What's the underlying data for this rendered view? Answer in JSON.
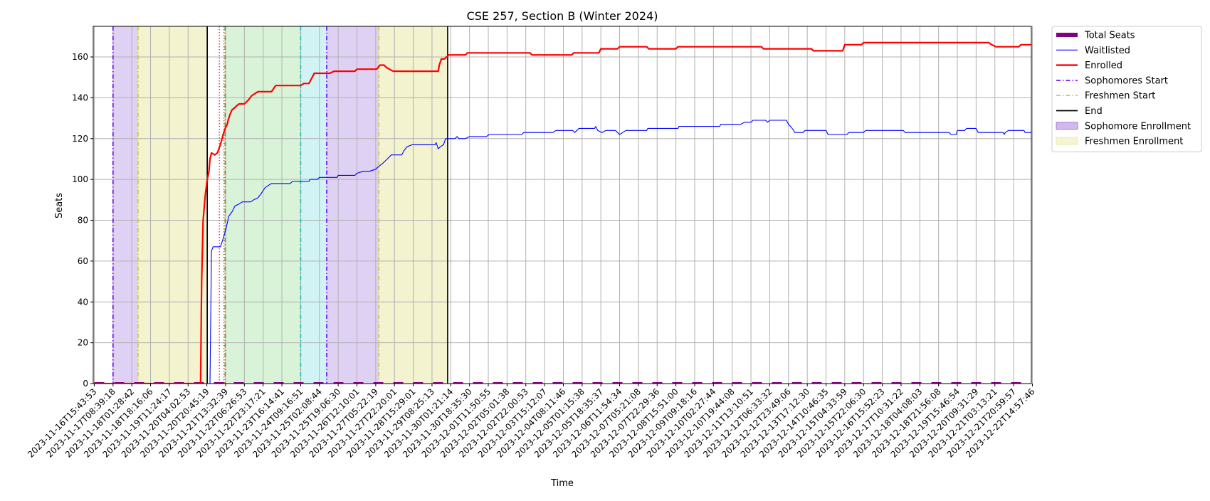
{
  "chart_data": {
    "type": "line",
    "title": "CSE 257, Section B (Winter 2024)",
    "xlabel": "Time",
    "ylabel": "Seats",
    "ylim": [
      0,
      175
    ],
    "yticks": [
      0,
      20,
      40,
      60,
      80,
      100,
      120,
      140,
      160
    ],
    "grid": true,
    "legend_position": "outside-top-right",
    "x_tick_labels": [
      "2023-11-16T15:43:53",
      "2023-11-17T08:39:18",
      "2023-11-18T01:28:42",
      "2023-11-18T18:16:06",
      "2023-11-19T11:24:17",
      "2023-11-20T04:02:53",
      "2023-11-20T20:45:19",
      "2023-11-21T13:32:39",
      "2023-11-22T06:26:53",
      "2023-11-22T23:17:21",
      "2023-11-23T16:14:41",
      "2023-11-24T09:16:51",
      "2023-11-25T02:08:44",
      "2023-11-25T19:06:30",
      "2023-11-26T12:10:01",
      "2023-11-27T05:22:19",
      "2023-11-27T22:20:01",
      "2023-11-28T15:29:01",
      "2023-11-29T08:25:13",
      "2023-11-30T01:21:14",
      "2023-11-30T18:35:30",
      "2023-12-01T11:50:55",
      "2023-12-02T05:01:38",
      "2023-12-02T22:00:53",
      "2023-12-03T15:12:07",
      "2023-12-04T08:11:46",
      "2023-12-05T01:15:38",
      "2023-12-05T18:35:37",
      "2023-12-06T11:54:34",
      "2023-12-07T05:21:08",
      "2023-12-07T22:29:36",
      "2023-12-08T15:51:00",
      "2023-12-09T09:18:16",
      "2023-12-10T02:27:44",
      "2023-12-10T19:44:08",
      "2023-12-11T13:10:51",
      "2023-12-12T06:33:32",
      "2023-12-12T23:49:06",
      "2023-12-13T17:12:30",
      "2023-12-14T10:46:35",
      "2023-12-15T04:33:59",
      "2023-12-15T22:06:30",
      "2023-12-16T15:52:23",
      "2023-12-17T10:31:22",
      "2023-12-18T04:08:03",
      "2023-12-18T21:56:08",
      "2023-12-19T15:46:54",
      "2023-12-20T09:31:29",
      "2023-12-21T03:13:21",
      "2023-12-21T20:59:57",
      "2023-12-22T14:57:46"
    ],
    "x_range": [
      -0.05,
      44.95
    ],
    "series": [
      {
        "name": "Total Seats",
        "style": "dashed-thick",
        "color": "#800080",
        "points": [
          [
            0,
            0
          ],
          [
            44.95,
            0
          ]
        ]
      },
      {
        "name": "Waitlisted",
        "style": "solid-thin",
        "color": "#0000ff",
        "points": [
          [
            0,
            0
          ],
          [
            5.5,
            0
          ],
          [
            5.55,
            0
          ],
          [
            5.62,
            65
          ],
          [
            5.7,
            67
          ],
          [
            6.05,
            67
          ],
          [
            6.15,
            70
          ],
          [
            6.3,
            75
          ],
          [
            6.45,
            82
          ],
          [
            6.6,
            84
          ],
          [
            6.75,
            87
          ],
          [
            6.95,
            88
          ],
          [
            7.1,
            89
          ],
          [
            7.5,
            89
          ],
          [
            7.65,
            90
          ],
          [
            7.85,
            91
          ],
          [
            8.0,
            93
          ],
          [
            8.2,
            96
          ],
          [
            8.35,
            97
          ],
          [
            8.5,
            98
          ],
          [
            9.0,
            98
          ],
          [
            9.4,
            98
          ],
          [
            9.5,
            99
          ],
          [
            10.0,
            99
          ],
          [
            10.3,
            99
          ],
          [
            10.35,
            100
          ],
          [
            10.7,
            100
          ],
          [
            10.8,
            101
          ],
          [
            11.5,
            101
          ],
          [
            11.65,
            101
          ],
          [
            11.7,
            102
          ],
          [
            12.5,
            102
          ],
          [
            12.6,
            103
          ],
          [
            12.9,
            104
          ],
          [
            13.2,
            104
          ],
          [
            13.5,
            105
          ],
          [
            13.6,
            106
          ],
          [
            13.85,
            108
          ],
          [
            14.05,
            110
          ],
          [
            14.25,
            112
          ],
          [
            14.75,
            112
          ],
          [
            14.85,
            114
          ],
          [
            15.0,
            116
          ],
          [
            15.25,
            117
          ],
          [
            16.0,
            117
          ],
          [
            16.35,
            117
          ],
          [
            16.4,
            118
          ],
          [
            16.5,
            115
          ],
          [
            16.6,
            116
          ],
          [
            16.75,
            117
          ],
          [
            16.85,
            120
          ],
          [
            17.3,
            120
          ],
          [
            17.4,
            121
          ],
          [
            17.5,
            120
          ],
          [
            17.8,
            120
          ],
          [
            18.0,
            121
          ],
          [
            18.8,
            121
          ],
          [
            18.95,
            122
          ],
          [
            20.5,
            122
          ],
          [
            20.6,
            123
          ],
          [
            21.2,
            123
          ],
          [
            22.0,
            123
          ],
          [
            22.15,
            124
          ],
          [
            22.95,
            124
          ],
          [
            23.05,
            123
          ],
          [
            23.15,
            124
          ],
          [
            23.25,
            125
          ],
          [
            24.0,
            125
          ],
          [
            24.05,
            126
          ],
          [
            24.15,
            124
          ],
          [
            24.35,
            123
          ],
          [
            24.55,
            124
          ],
          [
            25.0,
            124
          ],
          [
            25.1,
            123
          ],
          [
            25.2,
            122
          ],
          [
            25.35,
            123
          ],
          [
            25.5,
            124
          ],
          [
            26.5,
            124
          ],
          [
            26.55,
            125
          ],
          [
            28.0,
            125
          ],
          [
            28.05,
            126
          ],
          [
            30.0,
            126
          ],
          [
            30.05,
            127
          ],
          [
            31.0,
            127
          ],
          [
            31.2,
            128
          ],
          [
            31.5,
            128
          ],
          [
            31.6,
            129
          ],
          [
            32.2,
            129
          ],
          [
            32.3,
            128
          ],
          [
            32.4,
            129
          ],
          [
            33.2,
            129
          ],
          [
            33.3,
            127
          ],
          [
            33.4,
            126
          ],
          [
            33.55,
            124
          ],
          [
            33.6,
            123
          ],
          [
            34.0,
            123
          ],
          [
            34.1,
            124
          ],
          [
            35.1,
            124
          ],
          [
            35.2,
            122
          ],
          [
            36.1,
            122
          ],
          [
            36.2,
            123
          ],
          [
            36.9,
            123
          ],
          [
            37.0,
            124
          ],
          [
            38.8,
            124
          ],
          [
            38.9,
            123
          ],
          [
            39.8,
            123
          ],
          [
            41.0,
            123
          ],
          [
            41.1,
            122
          ],
          [
            41.35,
            122
          ],
          [
            41.4,
            124
          ],
          [
            41.75,
            124
          ],
          [
            41.85,
            125
          ],
          [
            42.3,
            125
          ],
          [
            42.4,
            123
          ],
          [
            43.0,
            123
          ],
          [
            43.6,
            123
          ],
          [
            43.65,
            122
          ],
          [
            43.7,
            123
          ],
          [
            43.85,
            124
          ],
          [
            44.6,
            124
          ],
          [
            44.65,
            123
          ],
          [
            44.95,
            123
          ]
        ]
      },
      {
        "name": "Enrolled",
        "style": "solid-thick",
        "color": "#ff0000",
        "points": [
          [
            0,
            0
          ],
          [
            5.0,
            0
          ],
          [
            5.1,
            0
          ],
          [
            5.15,
            50
          ],
          [
            5.22,
            80
          ],
          [
            5.32,
            92
          ],
          [
            5.42,
            100
          ],
          [
            5.5,
            104
          ],
          [
            5.55,
            110
          ],
          [
            5.62,
            113
          ],
          [
            5.78,
            112
          ],
          [
            5.9,
            113
          ],
          [
            5.98,
            115
          ],
          [
            6.08,
            118
          ],
          [
            6.18,
            122
          ],
          [
            6.28,
            125
          ],
          [
            6.38,
            127
          ],
          [
            6.42,
            129
          ],
          [
            6.52,
            132
          ],
          [
            6.6,
            134
          ],
          [
            6.72,
            135
          ],
          [
            6.82,
            136
          ],
          [
            6.95,
            137
          ],
          [
            7.2,
            137
          ],
          [
            7.4,
            139
          ],
          [
            7.55,
            141
          ],
          [
            7.7,
            142
          ],
          [
            7.85,
            143
          ],
          [
            8.5,
            143
          ],
          [
            8.7,
            146
          ],
          [
            9.9,
            146
          ],
          [
            10.05,
            147
          ],
          [
            10.3,
            147
          ],
          [
            10.4,
            149
          ],
          [
            10.55,
            152
          ],
          [
            11.3,
            152
          ],
          [
            11.5,
            153
          ],
          [
            12.5,
            153
          ],
          [
            12.6,
            154
          ],
          [
            13.55,
            154
          ],
          [
            13.7,
            156
          ],
          [
            13.9,
            156
          ],
          [
            14.0,
            155
          ],
          [
            14.15,
            154
          ],
          [
            14.35,
            153
          ],
          [
            15.25,
            153
          ],
          [
            16.5,
            153
          ],
          [
            16.55,
            156
          ],
          [
            16.65,
            159
          ],
          [
            16.8,
            159
          ],
          [
            16.9,
            160
          ],
          [
            17.0,
            161
          ],
          [
            17.8,
            161
          ],
          [
            17.9,
            162
          ],
          [
            20.9,
            162
          ],
          [
            21.0,
            161
          ],
          [
            22.9,
            161
          ],
          [
            23.0,
            162
          ],
          [
            24.2,
            162
          ],
          [
            24.3,
            164
          ],
          [
            25.1,
            164
          ],
          [
            25.2,
            165
          ],
          [
            26.5,
            165
          ],
          [
            26.6,
            164
          ],
          [
            27.9,
            164
          ],
          [
            28.0,
            165
          ],
          [
            32.0,
            165
          ],
          [
            32.1,
            164
          ],
          [
            34.4,
            164
          ],
          [
            34.5,
            163
          ],
          [
            35.9,
            163
          ],
          [
            36.0,
            166
          ],
          [
            36.8,
            166
          ],
          [
            36.9,
            167
          ],
          [
            42.9,
            167
          ],
          [
            43.05,
            166
          ],
          [
            43.25,
            165
          ],
          [
            44.35,
            165
          ],
          [
            44.45,
            166
          ],
          [
            44.95,
            166
          ]
        ]
      }
    ],
    "vertical_lines": [
      {
        "name": "Sophomores Start",
        "x": 0.9,
        "style": "dashdot",
        "color": "#6a00ff"
      },
      {
        "name": "Freshmen Start",
        "x": 2.1,
        "style": "dashdot",
        "color": "#cccc33"
      },
      {
        "name": "End",
        "x": 5.42,
        "style": "solid",
        "color": "#000000"
      },
      {
        "name": "",
        "x": 6.0,
        "style": "dotted",
        "color": "#ff4444"
      },
      {
        "name": "",
        "x": 6.22,
        "style": "dotted",
        "color": "#ff4444"
      },
      {
        "name": "",
        "x": 6.28,
        "style": "dashdot",
        "color": "#33aa33"
      },
      {
        "name": "",
        "x": 9.9,
        "style": "dashdot",
        "color": "#22bbbb"
      },
      {
        "name": "Sophomores Start",
        "x": 11.15,
        "style": "dashdot",
        "color": "#6a00ff"
      },
      {
        "name": "Freshmen Start",
        "x": 13.65,
        "style": "dashdot",
        "color": "#cccc33"
      },
      {
        "name": "End",
        "x": 16.95,
        "style": "solid",
        "color": "#000000"
      }
    ],
    "shaded_regions": [
      {
        "name": "Sophomore Enrollment",
        "x0": 0.9,
        "x1": 2.1,
        "color": "#9467d8",
        "opacity": 0.3
      },
      {
        "name": "Freshmen Enrollment",
        "x0": 2.1,
        "x1": 5.42,
        "color": "#e8e8a0",
        "opacity": 0.5
      },
      {
        "name": "",
        "x0": 6.28,
        "x1": 9.9,
        "color": "#7fd87f",
        "opacity": 0.3
      },
      {
        "name": "",
        "x0": 9.9,
        "x1": 11.15,
        "color": "#7fdede",
        "opacity": 0.35
      },
      {
        "name": "Sophomore Enrollment",
        "x0": 11.15,
        "x1": 13.65,
        "color": "#9467d8",
        "opacity": 0.3
      },
      {
        "name": "Freshmen Enrollment",
        "x0": 13.65,
        "x1": 16.95,
        "color": "#e8e8a0",
        "opacity": 0.5
      }
    ],
    "legend": [
      {
        "label": "Total Seats",
        "kind": "line-thick-dashed",
        "color": "#800080"
      },
      {
        "label": "Waitlisted",
        "kind": "line-thin",
        "color": "#0000ff"
      },
      {
        "label": "Enrolled",
        "kind": "line-thick",
        "color": "#ff0000"
      },
      {
        "label": "Sophomores Start",
        "kind": "line-dashdot",
        "color": "#6a00ff"
      },
      {
        "label": "Freshmen Start",
        "kind": "line-dashdot",
        "color": "#cccc33"
      },
      {
        "label": "End",
        "kind": "line-solid",
        "color": "#000000"
      },
      {
        "label": "Sophomore Enrollment",
        "kind": "patch",
        "color": "#9467d8"
      },
      {
        "label": "Freshmen Enrollment",
        "kind": "patch",
        "color": "#e8e8a0"
      }
    ]
  }
}
